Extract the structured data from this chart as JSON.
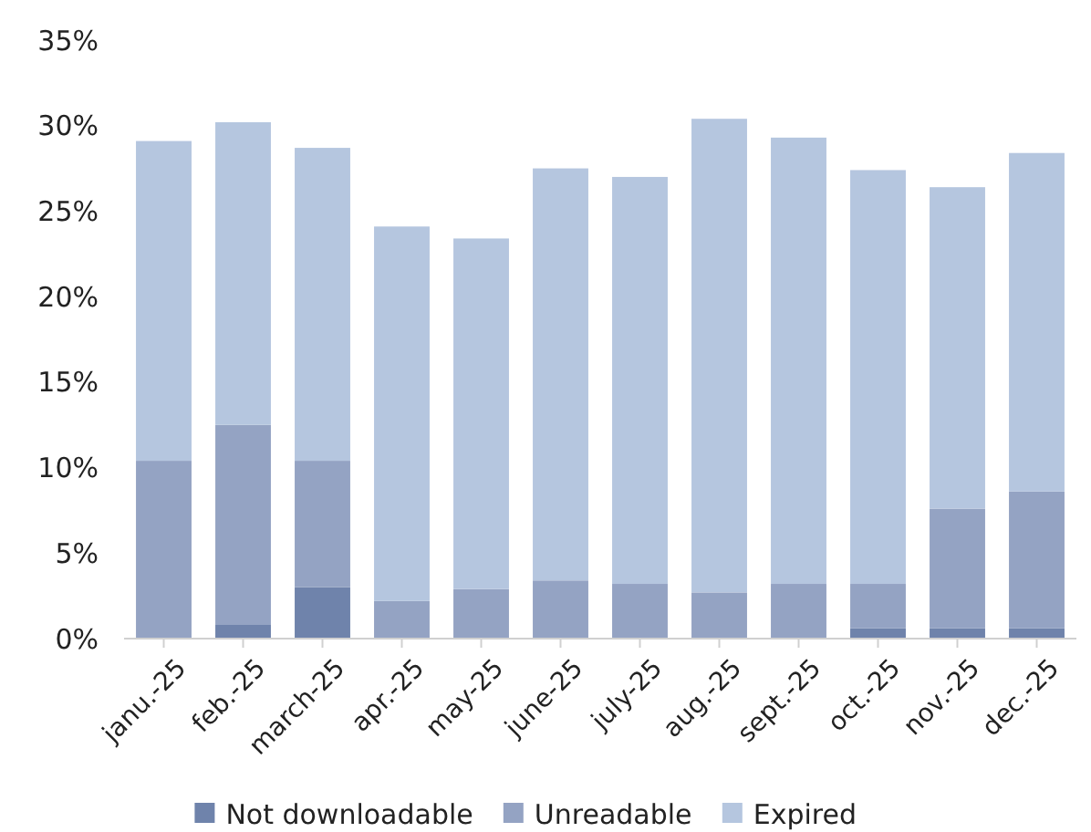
{
  "chart_data": {
    "type": "bar",
    "stacked": true,
    "legend": "bottom",
    "grid": false,
    "categories": [
      "janu.-25",
      "feb.-25",
      "march-25",
      "apr.-25",
      "may-25",
      "june-25",
      "july-25",
      "aug.-25",
      "sept.-25",
      "oct.-25",
      "nov.-25",
      "dec.-25"
    ],
    "series": [
      {
        "name": "Not downloadable",
        "color": "#6f83ab",
        "values": [
          0,
          0.8,
          3.0,
          0,
          0,
          0,
          0,
          0,
          0,
          0.6,
          0.6,
          0.6
        ]
      },
      {
        "name": "Unreadable",
        "color": "#94a3c3",
        "values": [
          10.4,
          11.7,
          7.4,
          2.2,
          2.9,
          3.4,
          3.2,
          2.7,
          3.2,
          2.6,
          7.0,
          8.0
        ]
      },
      {
        "name": "Expired",
        "color": "#b5c6df",
        "values": [
          18.7,
          17.7,
          18.3,
          21.9,
          20.5,
          24.1,
          23.8,
          27.7,
          26.1,
          24.2,
          18.8,
          19.8
        ]
      }
    ],
    "ylim": [
      0,
      35
    ],
    "yticks": [
      {
        "value": 0,
        "label": "0%"
      },
      {
        "value": 5,
        "label": "5%"
      },
      {
        "value": 10,
        "label": "10%"
      },
      {
        "value": 15,
        "label": "15%"
      },
      {
        "value": 20,
        "label": "20%"
      },
      {
        "value": 25,
        "label": "25%"
      },
      {
        "value": 30,
        "label": "30%"
      },
      {
        "value": 35,
        "label": "35%"
      }
    ]
  }
}
